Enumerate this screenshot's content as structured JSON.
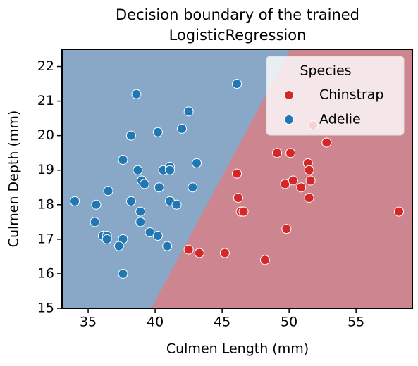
{
  "chart_data": {
    "type": "scatter",
    "title": [
      "Decision boundary of the trained",
      "LogisticRegression"
    ],
    "x_label": "Culmen Length (mm)",
    "y_label": "Culmen Depth (mm)",
    "xlim": [
      33.05,
      59.2
    ],
    "ylim": [
      15,
      22.5
    ],
    "xticks": [
      35,
      40,
      45,
      50,
      55
    ],
    "yticks": [
      15,
      16,
      17,
      18,
      19,
      20,
      21,
      22
    ],
    "legend_title": "Species",
    "legend_position": "upper right",
    "decision_boundary": {
      "x": [
        39.7,
        50.1
      ],
      "y": [
        15,
        22.5
      ],
      "colors": [
        "#89a8c8",
        "#cd8690"
      ]
    },
    "series": [
      {
        "name": "Chinstrap",
        "color": "#d62728",
        "x": [
          42.5,
          43.3,
          45.2,
          48.2,
          46.1,
          46.2,
          46.4,
          46.6,
          49.1,
          50.1,
          49.7,
          50.3,
          50.9,
          49.8,
          51.4,
          51.5,
          51.5,
          51.6,
          51.8,
          52.8,
          58.2
        ],
        "values": [
          16.7,
          16.6,
          16.6,
          16.4,
          18.9,
          18.2,
          17.8,
          17.8,
          19.5,
          19.5,
          18.6,
          18.7,
          18.5,
          17.3,
          19.2,
          19.0,
          18.2,
          18.7,
          20.3,
          19.8,
          17.8
        ]
      },
      {
        "name": "Adelie",
        "color": "#1f77b4",
        "x": [
          34.0,
          38.6,
          42.5,
          42.0,
          40.2,
          38.2,
          37.6,
          38.7,
          40.6,
          41.1,
          41.1,
          43.1,
          39.0,
          39.2,
          36.5,
          40.3,
          42.8,
          38.2,
          41.1,
          41.6,
          35.6,
          38.9,
          38.9,
          35.5,
          39.6,
          36.1,
          36.4,
          40.2,
          36.4,
          37.6,
          37.3,
          40.9,
          37.6,
          46.1
        ],
        "values": [
          18.1,
          21.2,
          20.7,
          20.2,
          20.1,
          20.0,
          19.3,
          19.0,
          19.0,
          19.1,
          19.0,
          19.2,
          18.7,
          18.6,
          18.4,
          18.5,
          18.5,
          18.1,
          18.1,
          18.0,
          18.0,
          17.8,
          17.5,
          17.5,
          17.2,
          17.1,
          17.1,
          17.1,
          17.0,
          17.0,
          16.8,
          16.8,
          16.0,
          21.5
        ]
      }
    ]
  }
}
